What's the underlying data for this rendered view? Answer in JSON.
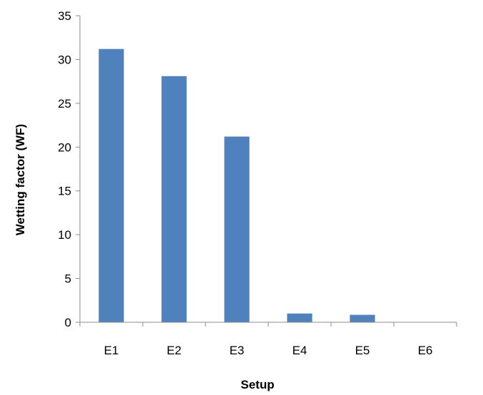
{
  "chart_data": {
    "type": "bar",
    "title": "",
    "xlabel": "Setup",
    "ylabel": "Wetting factor (WF)",
    "categories": [
      "E1",
      "E2",
      "E3",
      "E4",
      "E5",
      "E6"
    ],
    "values": [
      31.2,
      28.1,
      21.2,
      1.0,
      0.85,
      0
    ],
    "ylim": [
      0,
      35
    ],
    "yticks": [
      "0",
      "5",
      "10",
      "15",
      "20",
      "25",
      "30",
      "35"
    ],
    "grid": false,
    "legend": "none",
    "bar_color": "#4f81bd"
  }
}
